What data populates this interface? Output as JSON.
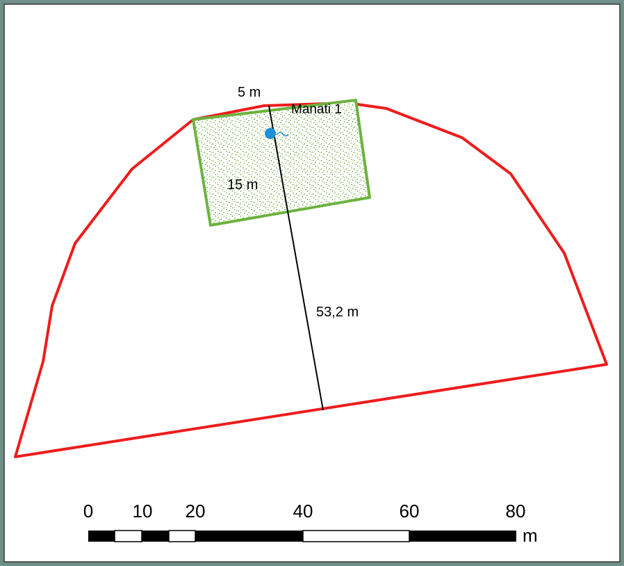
{
  "map": {
    "labels": {
      "well_name": "Manati 1",
      "dimension_top": "5 m",
      "dimension_side": "15 m",
      "dimension_distance": "53,2 m"
    },
    "colors": {
      "property_boundary": "#ee1c1c",
      "protection_zone": "#6cb33f",
      "well_marker": "#1e90d6",
      "measure_line": "#000000"
    },
    "icons": [
      "well-marker-icon"
    ]
  },
  "scale_bar": {
    "ticks": [
      "0",
      "10",
      "20",
      "40",
      "60",
      "80"
    ],
    "unit": "m",
    "tick_values": [
      0,
      10,
      20,
      40,
      60,
      80
    ]
  }
}
